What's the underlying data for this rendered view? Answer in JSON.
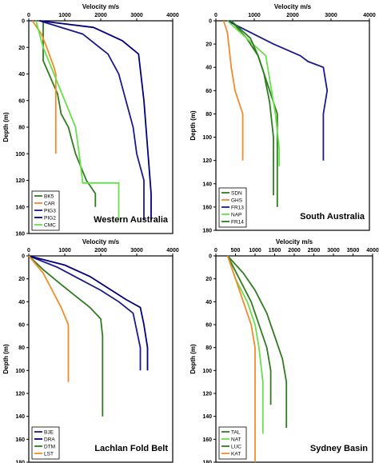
{
  "colors": {
    "dark_blue": "#1a1a8c",
    "navy": "#000080",
    "dark_green": "#2e7d1e",
    "bright_green": "#66e04a",
    "orange": "#f58a2a",
    "text": "#000000"
  },
  "chart_data": [
    {
      "type": "line",
      "region": "Western Australia",
      "xlabel": "Velocity m/s",
      "ylabel": "Depth (m)",
      "xlim": [
        0,
        4000
      ],
      "ylim": [
        0,
        160
      ],
      "y_inverted": true,
      "xticks": [
        0,
        1000,
        2000,
        3000,
        4000
      ],
      "yticks": [
        0,
        20,
        40,
        60,
        80,
        100,
        120,
        140,
        160
      ],
      "legend_position": "bottom-left",
      "series": [
        {
          "name": "BK5",
          "color": "#2e7d1e",
          "x": [
            400,
            400,
            800,
            900,
            1100,
            1300,
            1600,
            1850,
            1850
          ],
          "y": [
            0,
            30,
            55,
            70,
            80,
            100,
            120,
            130,
            140
          ]
        },
        {
          "name": "CAR",
          "color": "#f58a2a",
          "x": [
            100,
            350,
            500,
            700,
            750,
            750
          ],
          "y": [
            0,
            10,
            20,
            35,
            40,
            100
          ]
        },
        {
          "name": "PIG3",
          "color": "#1a1a8c",
          "x": [
            300,
            1500,
            2200,
            2500,
            2700,
            2900,
            3000,
            3200,
            3200
          ],
          "y": [
            0,
            10,
            25,
            40,
            60,
            80,
            100,
            120,
            150
          ]
        },
        {
          "name": "PIG2",
          "color": "#000080",
          "x": [
            300,
            1800,
            2600,
            3050,
            3200,
            3400,
            3400
          ],
          "y": [
            0,
            5,
            15,
            25,
            60,
            130,
            150
          ]
        },
        {
          "name": "CMC",
          "color": "#66e04a",
          "x": [
            200,
            400,
            700,
            1000,
            1300,
            1400,
            1500,
            2500,
            2500
          ],
          "y": [
            0,
            20,
            40,
            60,
            80,
            100,
            122,
            122,
            150
          ]
        }
      ]
    },
    {
      "type": "line",
      "region": "South Australia",
      "xlabel": "Velocity m/s",
      "ylabel": "Depth (m)",
      "xlim": [
        0,
        4000
      ],
      "ylim": [
        0,
        180
      ],
      "y_inverted": true,
      "xticks": [
        0,
        1000,
        2000,
        3000,
        4000
      ],
      "yticks": [
        0,
        20,
        40,
        60,
        80,
        100,
        120,
        140,
        160,
        180
      ],
      "legend_position": "bottom-left",
      "series": [
        {
          "name": "SDN",
          "color": "#2e7d1e",
          "x": [
            400,
            800,
            1100,
            1400,
            1600,
            1600
          ],
          "y": [
            0,
            15,
            30,
            60,
            80,
            160
          ]
        },
        {
          "name": "GHS",
          "color": "#f58a2a",
          "x": [
            200,
            300,
            350,
            400,
            500,
            700,
            700
          ],
          "y": [
            0,
            10,
            25,
            40,
            60,
            80,
            120
          ]
        },
        {
          "name": "FR13",
          "color": "#1a1a8c",
          "x": [
            300,
            900,
            1500,
            2200,
            2400,
            2800,
            2900,
            2800,
            2800
          ],
          "y": [
            0,
            10,
            20,
            30,
            35,
            40,
            60,
            80,
            120
          ]
        },
        {
          "name": "NAP",
          "color": "#66e04a",
          "x": [
            300,
            800,
            1300,
            1400,
            1550,
            1650,
            1650
          ],
          "y": [
            0,
            15,
            30,
            50,
            80,
            110,
            125
          ]
        },
        {
          "name": "FR14",
          "color": "#2e7d1e",
          "x": [
            400,
            900,
            1100,
            1250,
            1400,
            1500,
            1500
          ],
          "y": [
            0,
            15,
            30,
            45,
            70,
            100,
            150
          ]
        }
      ]
    },
    {
      "type": "line",
      "region": "Lachlan Fold Belt",
      "xlabel": "Velocity m/s",
      "ylabel": "Depth (m)",
      "xlim": [
        0,
        4000
      ],
      "ylim": [
        0,
        180
      ],
      "y_inverted": true,
      "xticks": [
        0,
        1000,
        2000,
        3000,
        4000
      ],
      "yticks": [
        0,
        20,
        40,
        60,
        80,
        100,
        120,
        140,
        160,
        180
      ],
      "legend_position": "bottom-left",
      "series": [
        {
          "name": "BJE",
          "color": "#1a1a8c",
          "x": [
            0,
            800,
            1400,
            2000,
            2500,
            2900,
            3000,
            3100,
            3100
          ],
          "y": [
            0,
            10,
            20,
            30,
            40,
            50,
            65,
            80,
            100
          ]
        },
        {
          "name": "DRA",
          "color": "#000080",
          "x": [
            0,
            1000,
            1700,
            2200,
            2700,
            3100,
            3200,
            3300,
            3300
          ],
          "y": [
            0,
            8,
            18,
            28,
            38,
            45,
            60,
            80,
            100
          ]
        },
        {
          "name": "DTM",
          "color": "#2e7d1e",
          "x": [
            0,
            400,
            900,
            1300,
            1700,
            2000,
            2050,
            2050
          ],
          "y": [
            0,
            12,
            25,
            35,
            45,
            55,
            70,
            140
          ]
        },
        {
          "name": "LST",
          "color": "#f58a2a",
          "x": [
            0,
            400,
            650,
            900,
            1100,
            1100
          ],
          "y": [
            0,
            15,
            30,
            45,
            60,
            110
          ]
        }
      ]
    },
    {
      "type": "line",
      "region": "Sydney Basin",
      "xlabel": "Velocity m/s",
      "ylabel": "Depth (m)",
      "xlim": [
        0,
        4000
      ],
      "ylim": [
        0,
        180
      ],
      "y_inverted": true,
      "xticks": [
        0,
        500,
        1000,
        1500,
        2000,
        2500,
        3000,
        3500,
        4000
      ],
      "yticks": [
        0,
        20,
        40,
        60,
        80,
        100,
        120,
        140,
        160,
        180
      ],
      "legend_position": "bottom-left",
      "series": [
        {
          "name": "TAL",
          "color": "#2e7d1e",
          "x": [
            300,
            600,
            900,
            1100,
            1300,
            1400,
            1400
          ],
          "y": [
            0,
            20,
            40,
            60,
            80,
            100,
            130
          ]
        },
        {
          "name": "NAT",
          "color": "#66e04a",
          "x": [
            300,
            500,
            800,
            1000,
            1100,
            1200,
            1200
          ],
          "y": [
            0,
            20,
            40,
            60,
            80,
            110,
            155
          ]
        },
        {
          "name": "LUC",
          "color": "#2e7d1e",
          "x": [
            300,
            700,
            1000,
            1300,
            1500,
            1700,
            1800,
            1800
          ],
          "y": [
            0,
            15,
            30,
            50,
            70,
            90,
            110,
            150
          ]
        },
        {
          "name": "KAT",
          "color": "#f58a2a",
          "x": [
            300,
            500,
            700,
            900,
            1000,
            1000
          ],
          "y": [
            0,
            20,
            40,
            60,
            80,
            180
          ]
        }
      ]
    }
  ]
}
